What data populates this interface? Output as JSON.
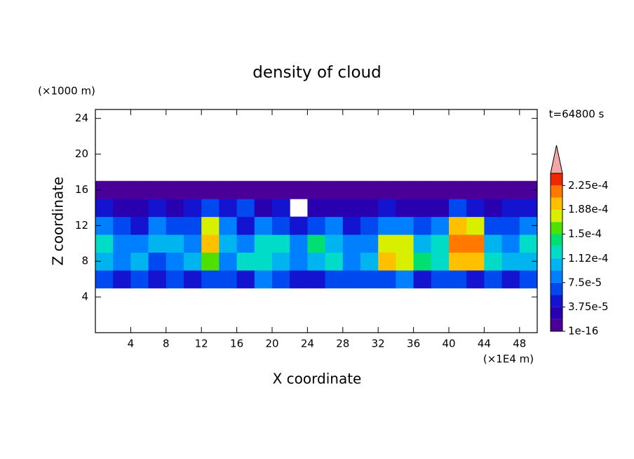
{
  "chart_data": {
    "type": "contour",
    "title": "density of cloud",
    "xlabel": "X coordinate",
    "ylabel": "Z coordinate",
    "xunit": "(×1E4 m)",
    "yunit": "(×1000 m)",
    "annotation": "t=64800 s",
    "xlim": [
      0,
      50
    ],
    "ylim": [
      0,
      25
    ],
    "xticks": [
      4,
      8,
      12,
      16,
      20,
      24,
      28,
      32,
      36,
      40,
      44,
      48
    ],
    "yticks": [
      4,
      8,
      12,
      16,
      20,
      24
    ],
    "x": [
      0,
      2,
      4,
      6,
      8,
      10,
      12,
      14,
      16,
      18,
      20,
      22,
      24,
      26,
      28,
      30,
      32,
      34,
      36,
      38,
      40,
      42,
      44,
      46,
      48,
      50
    ],
    "z": [
      5,
      7,
      9,
      11,
      13,
      15,
      17
    ],
    "values": [
      [
        6e-05,
        5e-05,
        7e-05,
        5e-05,
        6e-05,
        5e-05,
        7e-05,
        6e-05,
        5e-05,
        8e-05,
        6e-05,
        5e-05,
        5e-05,
        6e-05,
        7e-05,
        6e-05,
        6e-05,
        8e-05,
        5e-05,
        6e-05,
        6e-05,
        5e-05,
        6e-05,
        5e-05,
        6e-05
      ],
      [
        0.00011,
        8e-05,
        0.0001,
        7e-05,
        9e-05,
        0.00011,
        0.00016,
        9e-05,
        0.00012,
        0.00013,
        0.0001,
        8e-05,
        0.00011,
        0.00012,
        9e-05,
        0.0001,
        0.00019,
        0.00017,
        0.00014,
        0.00012,
        0.00019,
        0.0002,
        0.00012,
        0.0001,
        0.00011
      ],
      [
        0.00012,
        9e-05,
        8e-05,
        0.0001,
        0.00011,
        9e-05,
        0.0002,
        0.00011,
        8e-05,
        0.00013,
        0.00012,
        9e-05,
        0.00014,
        0.0001,
        8e-05,
        9e-05,
        0.00018,
        0.00018,
        0.00011,
        0.00013,
        0.00021,
        0.00021,
        0.00011,
        9e-05,
        0.00013
      ],
      [
        9e-05,
        6e-05,
        5e-05,
        8e-05,
        7e-05,
        6e-05,
        0.00017,
        8e-05,
        5e-05,
        9e-05,
        6e-05,
        4e-05,
        6e-05,
        8e-05,
        5e-05,
        7e-05,
        9e-05,
        8e-05,
        7e-05,
        9e-05,
        0.00019,
        0.00017,
        7e-05,
        6e-05,
        8e-05
      ],
      [
        4e-05,
        3e-05,
        2.5e-05,
        4e-05,
        3e-05,
        5e-05,
        6e-05,
        4e-05,
        7e-05,
        3e-05,
        4e-05,
        null,
        2e-05,
        3e-05,
        2.5e-05,
        3e-05,
        4e-05,
        3e-05,
        3e-05,
        2.5e-05,
        7e-05,
        4e-05,
        3e-05,
        4e-05,
        5e-05
      ],
      [
        5e-06,
        5e-06,
        1e-05,
        5e-06,
        5e-06,
        5e-06,
        5e-06,
        5e-06,
        1e-05,
        5e-06,
        5e-06,
        5e-06,
        5e-06,
        5e-06,
        5e-06,
        5e-06,
        5e-06,
        5e-06,
        5e-06,
        5e-06,
        5e-06,
        5e-06,
        5e-06,
        5e-06,
        5e-06
      ]
    ],
    "colorbar": {
      "clim": [
        1e-16,
        0.00024375
      ],
      "colors": [
        "#4a0098",
        "#2800b0",
        "#1414d0",
        "#0048f0",
        "#0080ff",
        "#00b4f0",
        "#00dcc8",
        "#00e070",
        "#50e000",
        "#d8f000",
        "#ffc000",
        "#ff7800",
        "#f02800"
      ],
      "over_color": "#f4a6a6",
      "ticks": [
        {
          "value": 1e-16,
          "label": "1e-16"
        },
        {
          "value": 3.75e-05,
          "label": "3.75e-5"
        },
        {
          "value": 7.5e-05,
          "label": "7.5e-5"
        },
        {
          "value": 0.000112,
          "label": "1.12e-4"
        },
        {
          "value": 0.00015,
          "label": "1.5e-4"
        },
        {
          "value": 0.000188,
          "label": "1.88e-4"
        },
        {
          "value": 0.000225,
          "label": "2.25e-4"
        }
      ]
    }
  }
}
